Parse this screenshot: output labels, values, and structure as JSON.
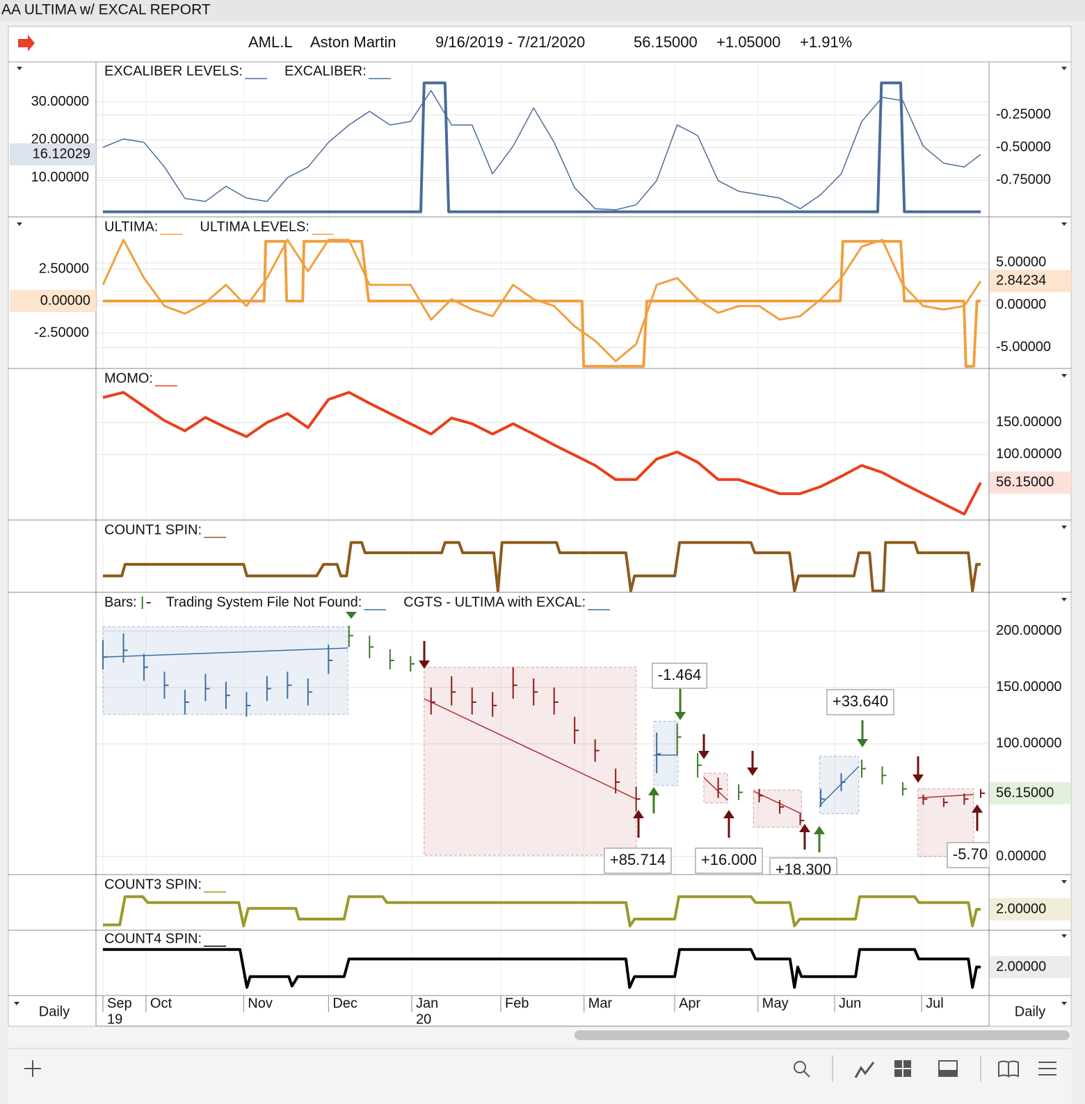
{
  "window_title": "AA ULTIMA w/ EXCAL REPORT",
  "header": {
    "symbol": "AML.L",
    "name": "Aston Martin",
    "range": "9/16/2019 - 7/21/2020",
    "last": "56.15000",
    "change": "+1.05000",
    "change_pct": "+1.91%"
  },
  "time_axis": {
    "xlim": [
      0,
      214
    ],
    "x": [
      0,
      5,
      10,
      15,
      20,
      25,
      30,
      35,
      40,
      45,
      50,
      55,
      60,
      65,
      70,
      75,
      80,
      85,
      90,
      95,
      100,
      105,
      110,
      115,
      120,
      125,
      130,
      135,
      140,
      145,
      150,
      155,
      160,
      165,
      170,
      175,
      180,
      185,
      190,
      195,
      200,
      205,
      210,
      214
    ],
    "xticks": [
      {
        "value": 0,
        "label": "Sep"
      },
      {
        "value": 10.5,
        "label": "Oct"
      },
      {
        "value": 34.3,
        "label": "Nov"
      },
      {
        "value": 55,
        "label": "Dec"
      },
      {
        "value": 75.3,
        "label": "Jan"
      },
      {
        "value": 97,
        "label": "Feb"
      },
      {
        "value": 117.3,
        "label": "Mar"
      },
      {
        "value": 139.4,
        "label": "Apr"
      },
      {
        "value": 159.7,
        "label": "May"
      },
      {
        "value": 178.4,
        "label": "Jun"
      },
      {
        "value": 199.6,
        "label": "Jul"
      }
    ],
    "year_ticks": [
      {
        "value": 0,
        "label": "19"
      },
      {
        "value": 75.3,
        "label": "20"
      }
    ],
    "period": "Daily"
  },
  "chart_data": [
    {
      "type": "line",
      "ylim": [
        0,
        40
      ],
      "yticks": [
        {
          "value": 10,
          "label": "10.00000"
        },
        {
          "value": 20,
          "label": "20.00000"
        },
        {
          "value": 30,
          "label": "30.00000"
        }
      ],
      "y2lim": [
        -1.02,
        0.14
      ],
      "y2ticks": [
        {
          "value": -0.75,
          "label": "-0.75000"
        },
        {
          "value": -0.5,
          "label": "-0.50000"
        },
        {
          "value": -0.25,
          "label": "-0.25000"
        }
      ],
      "grid": true,
      "series": [
        {
          "name": "EXCALIBER LEVELS:",
          "color": "#4a6b9a",
          "width": 4,
          "x": [
            0,
            77.5,
            78.3,
            83.4,
            84.3,
            188.9,
            189.8,
            194.5,
            195.4,
            214
          ],
          "values": [
            1,
            1,
            35,
            35,
            1,
            1,
            35,
            35,
            1,
            1
          ]
        },
        {
          "name": "EXCALIBER:",
          "color": "#4a6b9a",
          "width": 1.5,
          "values": [
            18,
            20.2,
            19.3,
            12.8,
            4.5,
            3.7,
            7.7,
            4.6,
            3.7,
            10,
            12.8,
            19.3,
            23.9,
            27.5,
            23.9,
            24.8,
            33,
            23.9,
            23.9,
            11,
            18.3,
            28.4,
            19.3,
            7.3,
            1.8,
            1.5,
            2.8,
            9.2,
            23.9,
            21.1,
            9.2,
            6.4,
            5.5,
            4.6,
            1.8,
            5.5,
            11,
            24.8,
            31.2,
            30.3,
            18.3,
            13.8,
            12.8,
            16.12029
          ]
        }
      ],
      "tags": [
        {
          "value": 16.12029,
          "label": "16.12029",
          "axis": "y",
          "color": "#dde3ec",
          "text_color": "#3a5a85"
        }
      ]
    },
    {
      "type": "line",
      "ylim": [
        -5.16,
        6.36
      ],
      "yticks": [
        {
          "value": -2.5,
          "label": "-2.50000"
        },
        {
          "value": 0,
          "label": "0.00000"
        },
        {
          "value": 2.5,
          "label": "2.50000"
        }
      ],
      "y2lim": [
        -7.3,
        10.08
      ],
      "y2ticks": [
        {
          "value": -5,
          "label": "-5.00000"
        },
        {
          "value": 0,
          "label": "0.00000"
        },
        {
          "value": 5,
          "label": "5.00000"
        }
      ],
      "grid": true,
      "series": [
        {
          "name": "ULTIMA:",
          "color": "#f0a040",
          "width": 3,
          "axis": "y2",
          "values": [
            2.4,
            7.7,
            3.2,
            -0.1,
            -1,
            0.3,
            2.4,
            -0.1,
            3.2,
            7.7,
            4,
            7.7,
            7.7,
            2.4,
            2.4,
            2.4,
            -1.7,
            0.7,
            -0.5,
            -1.3,
            2.4,
            0.7,
            -0.1,
            -2.5,
            -4.2,
            -6.6,
            -4.6,
            2.4,
            3.2,
            0.7,
            -0.9,
            -0.1,
            -0.1,
            -1.7,
            -1.3,
            0.7,
            3.2,
            6.9,
            7.7,
            2.4,
            -0.1,
            -0.5,
            -0.1,
            2.84234
          ]
        },
        {
          "name": "ULTIMA LEVELS:",
          "color": "#f0a040",
          "width": 4,
          "x": [
            0,
            39.3,
            39.7,
            44.4,
            44.8,
            48.7,
            49,
            63.1,
            64.8,
            116.8,
            117.2,
            131.8,
            132.6,
            179.8,
            180.4,
            194.5,
            195.4,
            209.9,
            210.4,
            212.3,
            213.1,
            214
          ],
          "values": [
            0,
            0,
            4.67,
            4.67,
            0,
            0,
            4.67,
            4.67,
            0,
            0,
            -5.1,
            -5.1,
            0,
            0,
            4.67,
            4.67,
            0,
            0,
            -5.1,
            -5.1,
            0,
            0
          ]
        }
      ],
      "tags": [
        {
          "value": 0,
          "label": "0.00000",
          "axis": "y",
          "color": "#fde4cc",
          "text_color": "#d07020"
        },
        {
          "value": 2.84234,
          "label": "2.84234",
          "axis": "y2",
          "color": "#fde4cc",
          "text_color": "#d07020"
        }
      ]
    },
    {
      "type": "line",
      "y2lim": [
        0,
        230
      ],
      "y2ticks": [
        {
          "value": 100,
          "label": "100.00000"
        },
        {
          "value": 150,
          "label": "150.00000"
        }
      ],
      "grid": true,
      "series": [
        {
          "name": "MOMO:",
          "color": "#e8401c",
          "width": 4,
          "axis": "y2",
          "values": [
            189,
            197,
            175,
            153,
            137,
            158,
            142,
            128,
            150,
            164,
            142,
            186,
            197,
            180,
            164,
            148,
            132,
            157,
            148,
            132,
            148,
            132,
            115,
            99,
            83,
            61,
            61,
            93,
            104,
            88,
            61,
            61,
            50,
            39,
            39,
            50,
            66,
            83,
            72,
            55,
            39,
            23,
            7,
            56.15
          ]
        }
      ],
      "tags": [
        {
          "value": 56.15,
          "label": "56.15000",
          "axis": "y2",
          "color": "#fde0da",
          "text_color": "#c8301c"
        }
      ]
    },
    {
      "type": "line",
      "y2lim": [
        0,
        100
      ],
      "series": [
        {
          "name": "COUNT1 SPIN:",
          "color": "#8b5a1c",
          "width": 4,
          "axis": "y2",
          "x": [
            0,
            4.6,
            5.4,
            34.3,
            35.1,
            52.1,
            53.8,
            57.1,
            58,
            59.4,
            60.5,
            63.1,
            63.9,
            82.6,
            83.4,
            86.8,
            87.7,
            95.3,
            96.3,
            97.3,
            110.6,
            111.4,
            127.5,
            128.7,
            129.6,
            139.4,
            140.6,
            158,
            158.9,
            167.4,
            168.6,
            169.6,
            183.1,
            184.3,
            186.9,
            187.7,
            190.3,
            190.8,
            197.9,
            198.7,
            211,
            212,
            213,
            214
          ],
          "values": [
            22,
            22,
            39,
            39,
            22,
            22,
            39,
            39,
            22,
            22,
            71,
            71,
            56,
            56,
            71,
            71,
            56,
            56,
            0,
            71,
            71,
            56,
            56,
            0,
            22,
            22,
            71,
            71,
            56,
            56,
            0,
            22,
            22,
            56,
            56,
            0,
            0,
            71,
            71,
            56,
            56,
            0,
            39,
            39
          ]
        }
      ],
      "tags": []
    },
    {
      "type": "hlc",
      "y2lim": [
        -14.8,
        232
      ],
      "y2ticks": [
        {
          "value": 0,
          "label": "0.00000"
        },
        {
          "value": 100,
          "label": "100.00000"
        },
        {
          "value": 150,
          "label": "150.00000"
        },
        {
          "value": 200,
          "label": "200.00000"
        }
      ],
      "grid": true,
      "legend": [
        {
          "name": "Bars:"
        },
        {
          "name": "Trading System File Not Found:",
          "color": "#3a6ea5"
        },
        {
          "name": "CGTS - ULTIMA with EXCAL:",
          "color": "#3a6ea5"
        }
      ],
      "bars": {
        "high": [
          192,
          198,
          180,
          164,
          148,
          162,
          155,
          146,
          160,
          164,
          158,
          188,
          205,
          196,
          184,
          178,
          150,
          160,
          150,
          146,
          168,
          158,
          150,
          124,
          104,
          78,
          62,
          110,
          118,
          92,
          70,
          64,
          60,
          50,
          38,
          60,
          74,
          86,
          80,
          66,
          55,
          52,
          56,
          60
        ],
        "low": [
          166,
          172,
          156,
          140,
          126,
          138,
          131,
          124,
          138,
          140,
          134,
          162,
          186,
          176,
          166,
          164,
          126,
          134,
          126,
          124,
          140,
          134,
          126,
          100,
          84,
          56,
          40,
          74,
          90,
          70,
          52,
          50,
          48,
          38,
          28,
          44,
          58,
          70,
          64,
          54,
          46,
          44,
          46,
          52
        ],
        "close": [
          177,
          183,
          168,
          152,
          137,
          149,
          143,
          134,
          149,
          152,
          146,
          174,
          196,
          186,
          174,
          171,
          137,
          146,
          137,
          134,
          152,
          146,
          137,
          112,
          94,
          66,
          51,
          91,
          106,
          81,
          60,
          57,
          54,
          44,
          32,
          51,
          66,
          78,
          72,
          60,
          51,
          48,
          51,
          56.15
        ],
        "colors": [
          "#3a6ea5",
          "#3a6ea5",
          "#3a6ea5",
          "#3a6ea5",
          "#3a6ea5",
          "#3a6ea5",
          "#3a6ea5",
          "#3a6ea5",
          "#3a6ea5",
          "#3a6ea5",
          "#3a6ea5",
          "#3a6ea5",
          "#3d7a26",
          "#3d7a26",
          "#3d7a26",
          "#3d7a26",
          "#8b1a1a",
          "#8b1a1a",
          "#8b1a1a",
          "#8b1a1a",
          "#8b1a1a",
          "#8b1a1a",
          "#8b1a1a",
          "#8b1a1a",
          "#8b1a1a",
          "#8b1a1a",
          "#8b1a1a",
          "#3a6ea5",
          "#3d7a26",
          "#3d7a26",
          "#8b1a1a",
          "#3d7a26",
          "#8b1a1a",
          "#8b1a1a",
          "#8b1a1a",
          "#3a6ea5",
          "#3a6ea5",
          "#3d7a26",
          "#3d7a26",
          "#3d7a26",
          "#8b1a1a",
          "#8b1a1a",
          "#8b1a1a",
          "#8b1a1a"
        ]
      },
      "boxes": [
        {
          "x": [
            0,
            59.7
          ],
          "y": [
            204,
            126
          ],
          "color": "#3a6ea5",
          "trend": [
            177,
            185
          ]
        },
        {
          "x": [
            78.3,
            130
          ],
          "y": [
            168,
            1.2
          ],
          "color": "#b03030",
          "trend": [
            140,
            51
          ]
        },
        {
          "x": [
            134.3,
            140.2
          ],
          "y": [
            120,
            63
          ],
          "color": "#3a6ea5",
          "trend": [
            90,
            90
          ]
        },
        {
          "x": [
            146.5,
            152.3
          ],
          "y": [
            74,
            47.5
          ],
          "color": "#b03030",
          "trend": [
            70,
            50
          ]
        },
        {
          "x": [
            158.6,
            170.3
          ],
          "y": [
            59,
            26
          ],
          "color": "#b03030",
          "trend": [
            58,
            38
          ]
        },
        {
          "x": [
            174.7,
            184.3
          ],
          "y": [
            89,
            38
          ],
          "color": "#3a6ea5",
          "trend": [
            45,
            80
          ]
        },
        {
          "x": [
            198.7,
            212.3
          ],
          "y": [
            60,
            0
          ],
          "color": "#b03030",
          "trend": [
            52,
            55
          ]
        }
      ],
      "annotations": [
        {
          "text": "-1.464",
          "color": "#3d7a26"
        },
        {
          "text": "+33.640",
          "color": "#3d7a26"
        },
        {
          "text": "+85.714",
          "color": "#8b1a1a"
        },
        {
          "text": "+16.000",
          "color": "#8b1a1a"
        },
        {
          "text": "+18.300",
          "color": "#8b1a1a"
        },
        {
          "text": "-5.70",
          "color": "#8b1a1a"
        }
      ],
      "tags": [
        {
          "value": 56.15,
          "label": "56.15000",
          "axis": "y2",
          "color": "#e3f0dc",
          "text_color": "#3d7a26"
        }
      ]
    },
    {
      "type": "line",
      "y2lim": [
        0,
        5.29
      ],
      "series": [
        {
          "name": "COUNT3 SPIN:",
          "color": "#9a9a2a",
          "width": 4,
          "axis": "y2",
          "x": [
            0,
            4.1,
            5.4,
            9.7,
            10.9,
            33.1,
            34.3,
            35.4,
            47,
            47.8,
            58.8,
            60,
            68.2,
            69.2,
            127.5,
            128.5,
            129.6,
            139.4,
            140.4,
            158,
            159.1,
            167.5,
            168.6,
            169.9,
            183.5,
            184.5,
            197.9,
            198.9,
            211,
            212,
            213,
            214
          ],
          "values": [
            0.4,
            0.4,
            3.3,
            3.3,
            2.7,
            2.7,
            0.3,
            2.1,
            2.1,
            1,
            1,
            3.3,
            3.3,
            2.7,
            2.7,
            0.3,
            1,
            1,
            3.3,
            3.3,
            2.7,
            2.7,
            0.3,
            1,
            1,
            3.3,
            3.3,
            2.7,
            2.7,
            0.3,
            2,
            2
          ]
        }
      ],
      "tags": [
        {
          "value": 2,
          "label": "2.00000",
          "axis": "y2",
          "color": "#f0eed8",
          "text_color": "#222"
        }
      ]
    },
    {
      "type": "line",
      "y2lim": [
        0,
        4.62
      ],
      "series": [
        {
          "name": "COUNT4 SPIN:",
          "color": "#000000",
          "width": 4,
          "axis": "y2",
          "x": [
            0,
            33.4,
            35.1,
            35.9,
            45.3,
            46.1,
            47.5,
            58.8,
            60,
            127.5,
            128.4,
            129.6,
            139.4,
            140.6,
            158,
            159.1,
            167.5,
            168.6,
            169.4,
            170.3,
            183.5,
            184.5,
            197.9,
            198.9,
            211,
            212,
            213,
            214
          ],
          "values": [
            3.3,
            3.3,
            0.5,
            1.3,
            1.3,
            0.6,
            1.3,
            1.3,
            2.6,
            2.6,
            0.5,
            1.3,
            1.3,
            3.3,
            3.3,
            2.6,
            2.6,
            0.5,
            2,
            1.3,
            1.3,
            3.3,
            3.3,
            2.6,
            2.6,
            0.5,
            2,
            2
          ]
        }
      ],
      "tags": [
        {
          "value": 2,
          "label": "2.00000",
          "axis": "y2",
          "color": "#ececec",
          "text_color": "#222"
        }
      ]
    }
  ]
}
